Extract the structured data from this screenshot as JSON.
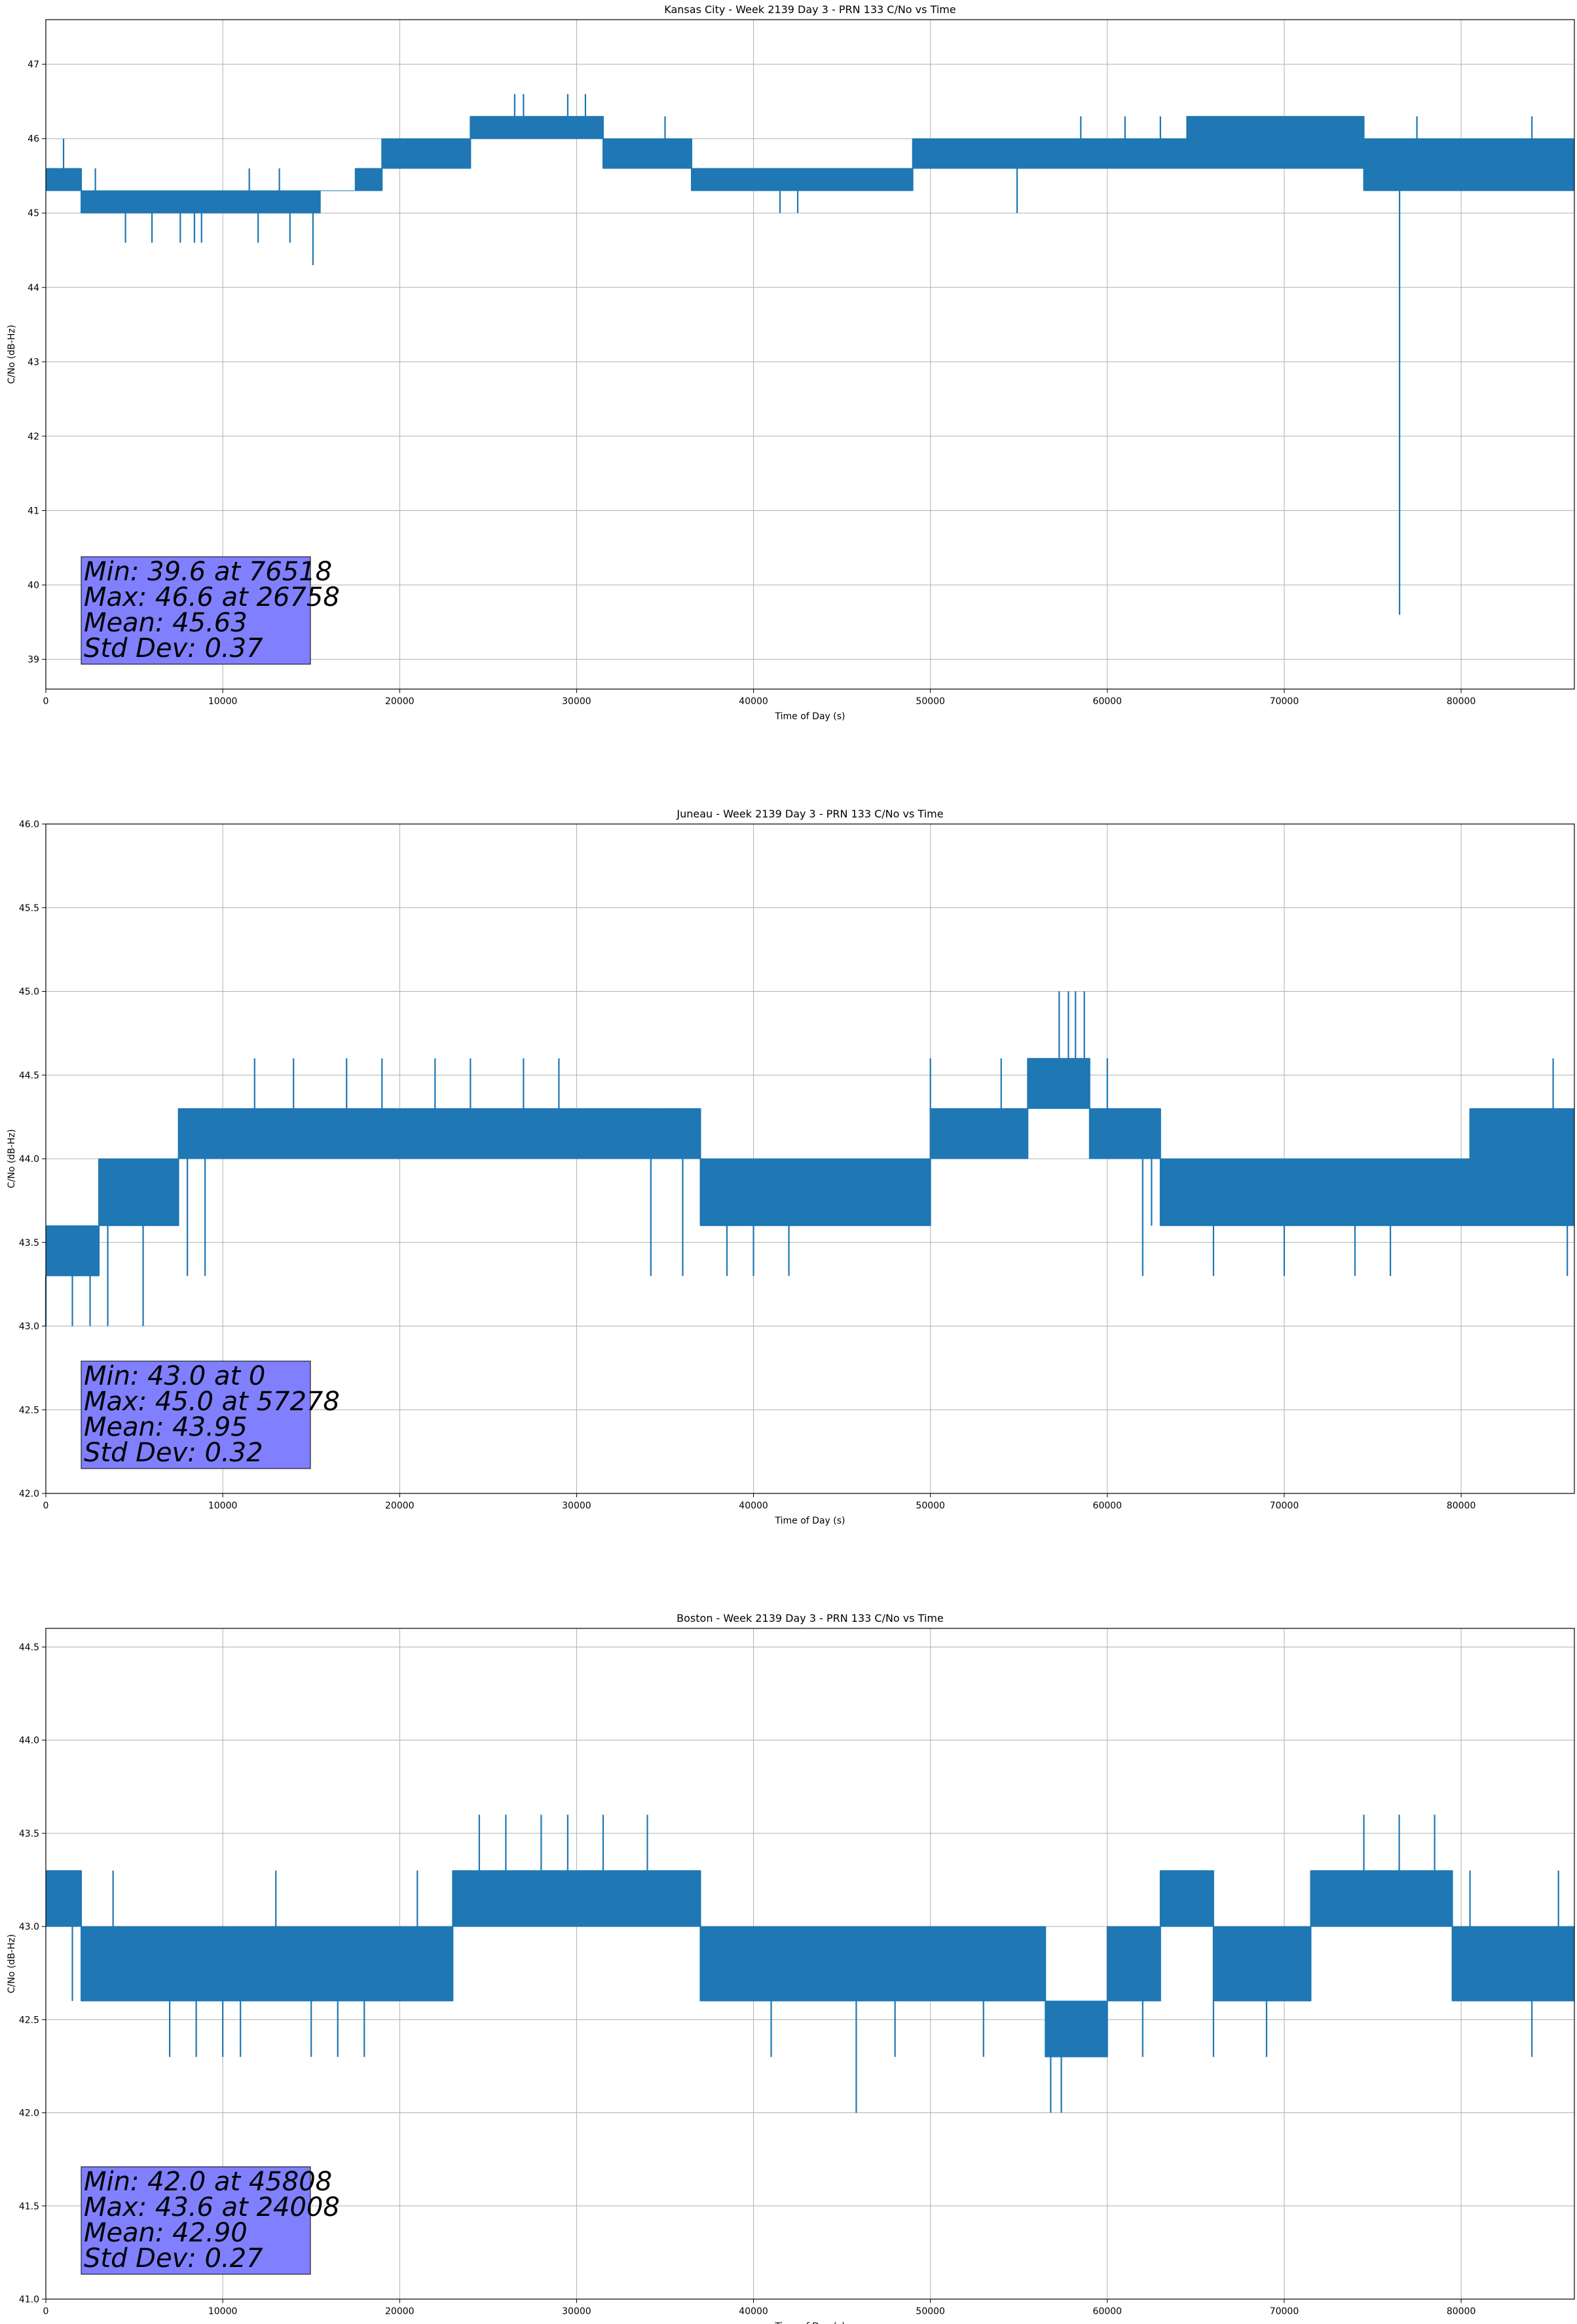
{
  "chart_data": [
    {
      "type": "line",
      "title": "Kansas City - Week 2139 Day 3 - PRN 133 C/No vs Time",
      "xlabel": "Time of Day (s)",
      "ylabel": "C/No (dB-Hz)",
      "xlim": [
        0,
        86400
      ],
      "ylim": [
        38.6,
        47.6
      ],
      "xticks": [
        0,
        10000,
        20000,
        30000,
        40000,
        50000,
        60000,
        70000,
        80000
      ],
      "yticks": [
        39,
        40,
        41,
        42,
        43,
        44,
        45,
        46,
        47
      ],
      "grid": true,
      "series": [
        {
          "color": "#1f77b4",
          "band_x": [
            0,
            2000,
            2000,
            15500,
            15500,
            17500,
            17500,
            19000,
            19000,
            24000,
            24000,
            31500,
            31500,
            36500,
            36500,
            49000,
            49000,
            64500,
            64500,
            74500,
            74500,
            86400
          ],
          "band_low": [
            45.3,
            45.3,
            45.0,
            45.0,
            45.3,
            45.3,
            45.3,
            45.3,
            45.6,
            45.6,
            46.0,
            46.0,
            45.6,
            45.6,
            45.3,
            45.3,
            45.6,
            45.6,
            45.6,
            45.6,
            45.3,
            45.3
          ],
          "band_high": [
            45.6,
            45.6,
            45.3,
            45.3,
            45.3,
            45.3,
            45.6,
            45.6,
            46.0,
            46.0,
            46.3,
            46.3,
            46.0,
            46.0,
            45.6,
            45.6,
            46.0,
            46.0,
            46.3,
            46.3,
            46.0,
            46.0
          ],
          "spikes": [
            [
              1000,
              46.0
            ],
            [
              2800,
              45.6
            ],
            [
              4500,
              44.6
            ],
            [
              6000,
              44.6
            ],
            [
              7600,
              44.6
            ],
            [
              8400,
              44.6
            ],
            [
              8800,
              44.6
            ],
            [
              11500,
              45.6
            ],
            [
              12000,
              44.6
            ],
            [
              13200,
              45.6
            ],
            [
              13800,
              44.6
            ],
            [
              15100,
              44.3
            ],
            [
              19400,
              46.0
            ],
            [
              26500,
              46.6
            ],
            [
              27000,
              46.6
            ],
            [
              29500,
              46.6
            ],
            [
              30500,
              46.6
            ],
            [
              35000,
              46.3
            ],
            [
              41500,
              45.0
            ],
            [
              42500,
              45.0
            ],
            [
              54900,
              45.0
            ],
            [
              58500,
              46.3
            ],
            [
              61000,
              46.3
            ],
            [
              63000,
              46.3
            ],
            [
              65400,
              46.3
            ],
            [
              76518,
              39.6
            ],
            [
              77500,
              46.3
            ],
            [
              80000,
              45.3
            ],
            [
              84000,
              46.3
            ]
          ]
        }
      ],
      "stats": {
        "min": "Min: 39.6 at 76518",
        "max": "Max: 46.6 at 26758",
        "mean": "Mean: 45.63",
        "std": "Std Dev: 0.37"
      }
    },
    {
      "type": "line",
      "title": "Juneau - Week 2139 Day 3 - PRN 133 C/No vs Time",
      "xlabel": "Time of Day (s)",
      "ylabel": "C/No (dB-Hz)",
      "xlim": [
        0,
        86400
      ],
      "ylim": [
        42.0,
        46.0
      ],
      "xticks": [
        0,
        10000,
        20000,
        30000,
        40000,
        50000,
        60000,
        70000,
        80000
      ],
      "yticks": [
        42.0,
        42.5,
        43.0,
        43.5,
        44.0,
        44.5,
        45.0,
        45.5,
        46.0
      ],
      "grid": true,
      "series": [
        {
          "color": "#1f77b4",
          "band_x": [
            0,
            3000,
            3000,
            4500,
            4500,
            7500,
            7500,
            29500,
            29500,
            37000,
            37000,
            44500,
            44500,
            50000,
            50000,
            55500,
            55500,
            59000,
            59000,
            63000,
            63000,
            80500,
            80500,
            86400
          ],
          "band_low": [
            43.3,
            43.3,
            43.6,
            43.6,
            43.6,
            43.6,
            44.0,
            44.0,
            44.0,
            44.0,
            43.6,
            43.6,
            43.6,
            43.6,
            44.0,
            44.0,
            44.3,
            44.3,
            44.0,
            44.0,
            43.6,
            43.6,
            43.6,
            43.6
          ],
          "band_high": [
            43.6,
            43.6,
            44.0,
            44.0,
            44.0,
            44.0,
            44.3,
            44.3,
            44.3,
            44.3,
            44.0,
            44.0,
            44.0,
            44.0,
            44.3,
            44.3,
            44.6,
            44.6,
            44.3,
            44.3,
            44.0,
            44.0,
            44.3,
            44.3
          ],
          "spikes": [
            [
              0,
              43.0
            ],
            [
              1500,
              43.0
            ],
            [
              2500,
              43.0
            ],
            [
              3500,
              43.0
            ],
            [
              5500,
              43.0
            ],
            [
              8000,
              43.3
            ],
            [
              9000,
              43.3
            ],
            [
              11800,
              44.6
            ],
            [
              14000,
              44.6
            ],
            [
              17000,
              44.6
            ],
            [
              19000,
              44.6
            ],
            [
              22000,
              44.6
            ],
            [
              24000,
              44.6
            ],
            [
              27000,
              44.6
            ],
            [
              29000,
              44.6
            ],
            [
              34200,
              43.3
            ],
            [
              34500,
              44.3
            ],
            [
              36000,
              43.3
            ],
            [
              38500,
              43.3
            ],
            [
              40000,
              43.3
            ],
            [
              42000,
              43.3
            ],
            [
              50000,
              44.6
            ],
            [
              54000,
              44.6
            ],
            [
              57278,
              45.0
            ],
            [
              57800,
              45.0
            ],
            [
              58200,
              45.0
            ],
            [
              58700,
              45.0
            ],
            [
              60000,
              44.6
            ],
            [
              62500,
              43.6
            ],
            [
              62000,
              43.3
            ],
            [
              66000,
              43.3
            ],
            [
              70000,
              43.3
            ],
            [
              74000,
              43.3
            ],
            [
              76000,
              43.3
            ],
            [
              81000,
              43.6
            ],
            [
              85200,
              44.6
            ],
            [
              86000,
              43.3
            ]
          ]
        }
      ],
      "stats": {
        "min": "Min: 43.0 at 0",
        "max": "Max: 45.0 at 57278",
        "mean": "Mean: 43.95",
        "std": "Std Dev: 0.32"
      }
    },
    {
      "type": "line",
      "title": "Boston - Week 2139 Day 3 - PRN 133 C/No vs Time",
      "xlabel": "Time of Day (s)",
      "ylabel": "C/No (dB-Hz)",
      "xlim": [
        0,
        86400
      ],
      "ylim": [
        41.0,
        44.6
      ],
      "xticks": [
        0,
        10000,
        20000,
        30000,
        40000,
        50000,
        60000,
        70000,
        80000
      ],
      "yticks": [
        41.0,
        41.5,
        42.0,
        42.5,
        43.0,
        43.5,
        44.0,
        44.5
      ],
      "grid": true,
      "series": [
        {
          "color": "#1f77b4",
          "band_x": [
            0,
            2000,
            2000,
            3000,
            3000,
            19500,
            19500,
            23000,
            23000,
            37000,
            37000,
            56500,
            56500,
            58000,
            58000,
            60000,
            60000,
            63000,
            63000,
            66000,
            66000,
            71500,
            71500,
            79500,
            79500,
            86400
          ],
          "band_low": [
            43.0,
            43.0,
            42.6,
            42.6,
            42.6,
            42.6,
            42.6,
            42.6,
            43.0,
            43.0,
            42.6,
            42.6,
            42.3,
            42.3,
            42.3,
            42.3,
            42.6,
            42.6,
            43.0,
            43.0,
            42.6,
            42.6,
            43.0,
            43.0,
            42.6,
            42.6
          ],
          "band_high": [
            43.3,
            43.3,
            43.0,
            43.0,
            43.0,
            43.0,
            43.0,
            43.0,
            43.3,
            43.3,
            43.0,
            43.0,
            42.6,
            42.6,
            42.6,
            42.6,
            43.0,
            43.0,
            43.3,
            43.3,
            43.0,
            43.0,
            43.3,
            43.3,
            43.0,
            43.0
          ],
          "spikes": [
            [
              1500,
              42.6
            ],
            [
              3800,
              43.3
            ],
            [
              7000,
              42.3
            ],
            [
              8500,
              42.3
            ],
            [
              10000,
              42.3
            ],
            [
              11000,
              42.3
            ],
            [
              13000,
              43.3
            ],
            [
              15000,
              42.3
            ],
            [
              16500,
              42.3
            ],
            [
              18000,
              42.3
            ],
            [
              21000,
              43.3
            ],
            [
              24500,
              43.6
            ],
            [
              26000,
              43.6
            ],
            [
              28000,
              43.6
            ],
            [
              29500,
              43.6
            ],
            [
              31500,
              43.6
            ],
            [
              34000,
              43.6
            ],
            [
              37000,
              42.6
            ],
            [
              41000,
              42.3
            ],
            [
              45808,
              42.0
            ],
            [
              48000,
              42.3
            ],
            [
              53000,
              42.3
            ],
            [
              56800,
              42.0
            ],
            [
              57400,
              42.0
            ],
            [
              62000,
              42.3
            ],
            [
              66000,
              42.3
            ],
            [
              69000,
              42.3
            ],
            [
              74500,
              43.6
            ],
            [
              76500,
              43.6
            ],
            [
              78500,
              43.6
            ],
            [
              80500,
              43.3
            ],
            [
              84000,
              42.3
            ],
            [
              85500,
              43.3
            ]
          ]
        }
      ],
      "stats": {
        "min": "Min: 42.0 at 45808",
        "max": "Max: 43.6 at 24008",
        "mean": "Mean: 42.90",
        "std": "Std Dev: 0.27"
      }
    }
  ]
}
